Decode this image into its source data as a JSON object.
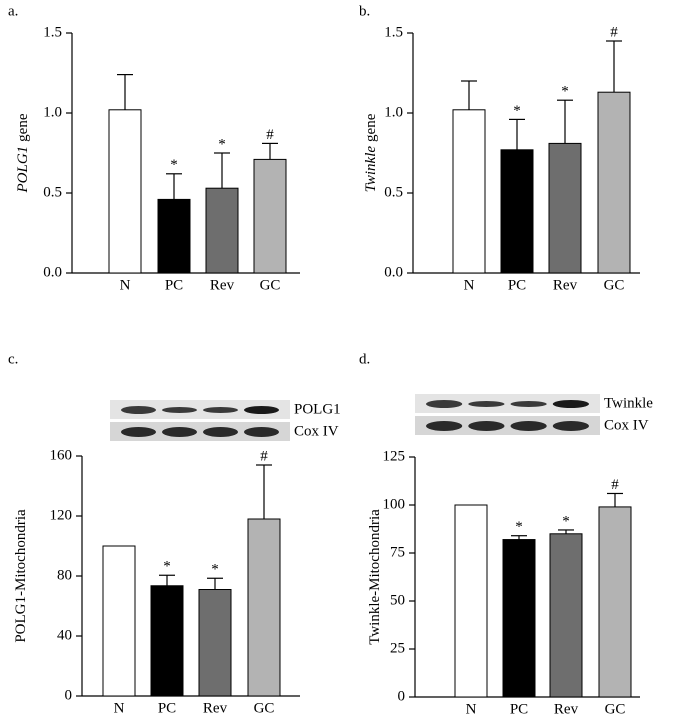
{
  "chart_data": [
    {
      "type": "bar",
      "panel_label": "a.",
      "ylabel": [
        "POLG1",
        "gene"
      ],
      "categories": [
        "N",
        "PC",
        "Rev",
        "GC"
      ],
      "values": [
        1.02,
        0.46,
        0.53,
        0.71
      ],
      "errors": [
        0.22,
        0.16,
        0.22,
        0.1
      ],
      "markers": [
        null,
        "*",
        "*",
        "#"
      ],
      "colors": [
        "#ffffff",
        "#000000",
        "#6e6e6e",
        "#b3b3b3"
      ],
      "ylim": [
        0,
        1.5
      ],
      "yticks": [
        {
          "value": 0,
          "label": "0.0"
        },
        0.5,
        {
          "value": 1,
          "label": "1.0"
        },
        1.5
      ]
    },
    {
      "type": "bar",
      "panel_label": "b.",
      "ylabel": [
        "Twinkle",
        "gene"
      ],
      "categories": [
        "N",
        "PC",
        "Rev",
        "GC"
      ],
      "values": [
        1.02,
        0.77,
        0.81,
        1.13
      ],
      "errors": [
        0.18,
        0.19,
        0.27,
        0.32
      ],
      "markers": [
        null,
        "*",
        "*",
        "#"
      ],
      "colors": [
        "#ffffff",
        "#000000",
        "#6e6e6e",
        "#b3b3b3"
      ],
      "ylim": [
        0,
        1.5
      ],
      "yticks": [
        {
          "value": 0,
          "label": "0.0"
        },
        0.5,
        {
          "value": 1,
          "label": "1.0"
        },
        1.5
      ]
    },
    {
      "type": "bar",
      "panel_label": "c.",
      "ylabel": [
        "POLG1-Mitochondria"
      ],
      "blot_labels": [
        "POLG1",
        "Cox IV"
      ],
      "categories": [
        "N",
        "PC",
        "Rev",
        "GC"
      ],
      "values": [
        100,
        73.5,
        71,
        118
      ],
      "errors": [
        null,
        7,
        7.5,
        36
      ],
      "markers": [
        null,
        "*",
        "*",
        "#"
      ],
      "colors": [
        "#ffffff",
        "#000000",
        "#6e6e6e",
        "#b3b3b3"
      ],
      "ylim": [
        0,
        160
      ],
      "yticks": [
        0,
        40,
        80,
        120,
        160
      ]
    },
    {
      "type": "bar",
      "panel_label": "d.",
      "ylabel": [
        "Twinkle-Mitochondria"
      ],
      "blot_labels": [
        "Twinkle",
        "Cox IV"
      ],
      "categories": [
        "N",
        "PC",
        "Rev",
        "GC"
      ],
      "values": [
        100,
        82,
        85,
        99
      ],
      "errors": [
        null,
        2,
        2,
        7
      ],
      "markers": [
        null,
        "*",
        "*",
        "#"
      ],
      "colors": [
        "#ffffff",
        "#000000",
        "#6e6e6e",
        "#b3b3b3"
      ],
      "ylim": [
        0,
        125
      ],
      "yticks": [
        0,
        25,
        50,
        75,
        100,
        125
      ]
    }
  ]
}
